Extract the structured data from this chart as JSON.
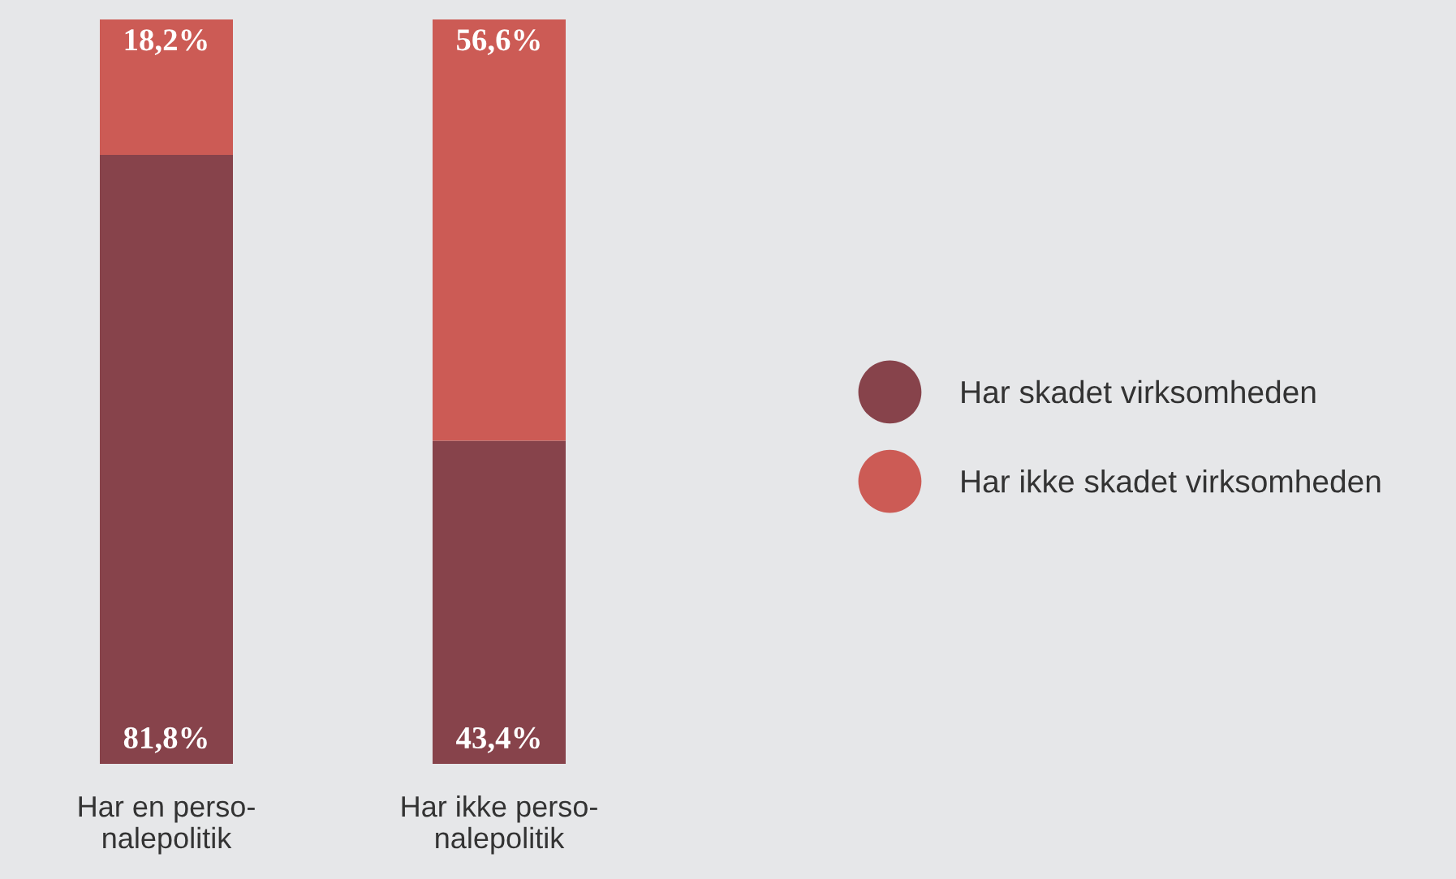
{
  "chart_data": {
    "type": "bar",
    "stacked": true,
    "categories": [
      "Har en perso-\nnalepolitik",
      "Har ikke perso-\nnalepolitik"
    ],
    "series": [
      {
        "name": "Har skadet virksomheden",
        "color": "#87434b",
        "values": [
          81.8,
          43.4
        ],
        "value_labels": [
          "81,8%",
          "43,4%"
        ]
      },
      {
        "name": "Har ikke skadet virksomheden",
        "color": "#cc5b55",
        "values": [
          18.2,
          56.6
        ],
        "value_labels": [
          "18,2%",
          "56,6%"
        ]
      }
    ],
    "legend": "right",
    "grid": false
  }
}
